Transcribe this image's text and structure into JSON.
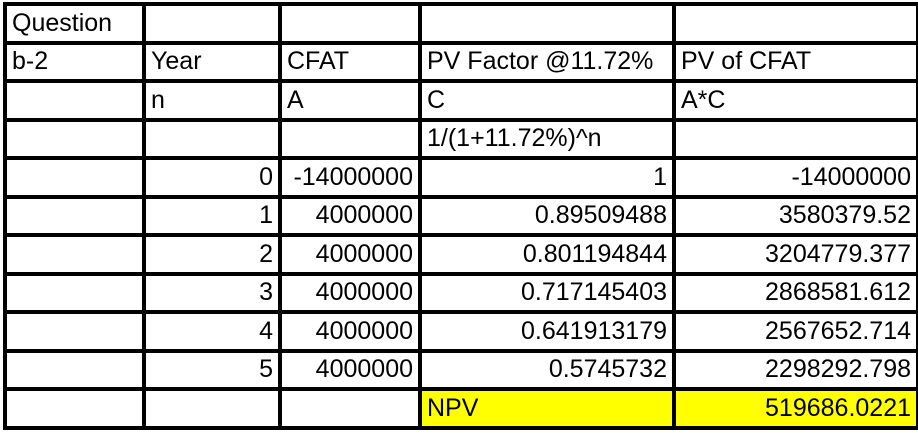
{
  "sheet": {
    "header": {
      "question": "Question",
      "part": "b-2",
      "col_year": "Year",
      "col_cfat": "CFAT",
      "col_pv_factor": "PV Factor @11.72%",
      "col_pv_cfat": "PV of CFAT",
      "sym_year": "n",
      "sym_cfat": "A",
      "sym_pv_factor": "C",
      "sym_pv_cfat": "A*C",
      "formula": "1/(1+11.72%)^n"
    },
    "data_rows": [
      {
        "n": "0",
        "cfat": "-14000000",
        "factor": "1",
        "pv": "-14000000"
      },
      {
        "n": "1",
        "cfat": "4000000",
        "factor": "0.89509488",
        "pv": "3580379.52"
      },
      {
        "n": "2",
        "cfat": "4000000",
        "factor": "0.801194844",
        "pv": "3204779.377"
      },
      {
        "n": "3",
        "cfat": "4000000",
        "factor": "0.717145403",
        "pv": "2868581.612"
      },
      {
        "n": "4",
        "cfat": "4000000",
        "factor": "0.641913179",
        "pv": "2567652.714"
      },
      {
        "n": "5",
        "cfat": "4000000",
        "factor": "0.5745732",
        "pv": "2298292.798"
      }
    ],
    "summary": {
      "npv_label": "NPV",
      "npv_value": "519686.0221"
    },
    "colors": {
      "highlight": "#FFFF00",
      "border": "#000000",
      "text": "#000000",
      "background": "#FFFFFF"
    }
  }
}
